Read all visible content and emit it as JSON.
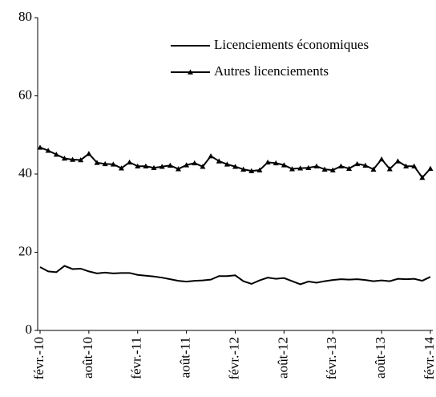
{
  "chart_data": {
    "type": "line",
    "categories": [
      "févr.-10",
      null,
      null,
      null,
      null,
      null,
      "août-10",
      null,
      null,
      null,
      null,
      null,
      "févr.-11",
      null,
      null,
      null,
      null,
      null,
      "août-11",
      null,
      null,
      null,
      null,
      null,
      "févr.-12",
      null,
      null,
      null,
      null,
      null,
      "août-12",
      null,
      null,
      null,
      null,
      null,
      "févr.-13",
      null,
      null,
      null,
      null,
      null,
      "août-13",
      null,
      null,
      null,
      null,
      null,
      "févr.-14"
    ],
    "series": [
      {
        "name": "Licenciements économiques",
        "color": "#000000",
        "marker": "none",
        "values": [
          16.2,
          15.1,
          14.9,
          16.5,
          15.7,
          15.8,
          15.1,
          14.6,
          14.8,
          14.6,
          14.7,
          14.7,
          14.2,
          14.0,
          13.8,
          13.5,
          13.1,
          12.7,
          12.5,
          12.7,
          12.8,
          13.0,
          13.9,
          13.9,
          14.1,
          12.6,
          11.9,
          12.8,
          13.5,
          13.2,
          13.4,
          12.6,
          11.8,
          12.5,
          12.2,
          12.6,
          12.9,
          13.1,
          13.0,
          13.1,
          12.9,
          12.6,
          12.8,
          12.6,
          13.2,
          13.1,
          13.2,
          12.7,
          13.7
        ]
      },
      {
        "name": "Autres licenciements",
        "color": "#000000",
        "marker": "triangle",
        "values": [
          46.8,
          46.0,
          45.0,
          44.0,
          43.7,
          43.6,
          45.2,
          42.9,
          42.6,
          42.5,
          41.5,
          43.0,
          42.0,
          42.0,
          41.6,
          41.9,
          42.2,
          41.3,
          42.3,
          42.8,
          41.9,
          44.6,
          43.3,
          42.5,
          41.9,
          41.2,
          40.8,
          41.0,
          43.0,
          42.8,
          42.3,
          41.3,
          41.5,
          41.6,
          42.0,
          41.2,
          41.0,
          42.0,
          41.4,
          42.6,
          42.2,
          41.2,
          43.8,
          41.3,
          43.3,
          42.0,
          42.0,
          39.1,
          41.4
        ]
      }
    ],
    "ylim": [
      0,
      80
    ],
    "yticks": [
      0,
      20,
      40,
      60,
      80
    ],
    "grid": false,
    "legend": "upper right"
  }
}
